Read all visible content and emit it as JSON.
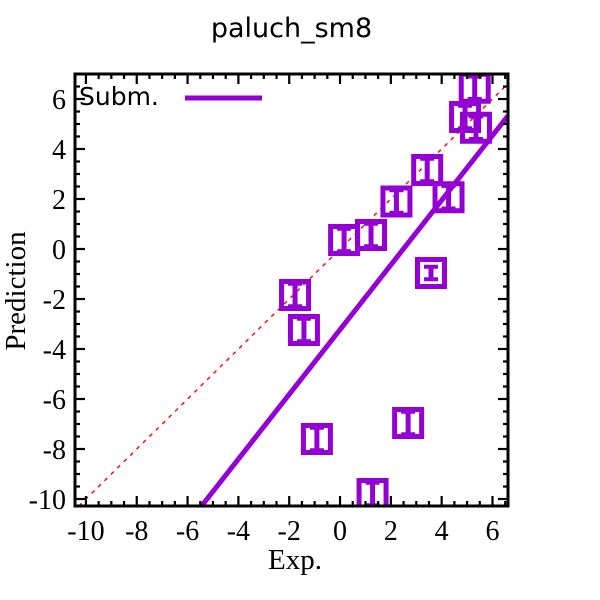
{
  "title": "paluch_sm8",
  "chart_data": {
    "type": "scatter",
    "title": "paluch_sm8",
    "xlabel": "Exp.",
    "ylabel": "Prediction",
    "xlim": [
      -10.43,
      6.61
    ],
    "ylim": [
      -10.28,
      7.0
    ],
    "grid": false,
    "x_major_ticks": [
      -10,
      -8,
      -6,
      -4,
      -2,
      0,
      2,
      4,
      6
    ],
    "y_major_ticks": [
      -10,
      -8,
      -6,
      -4,
      -2,
      0,
      2,
      4,
      6
    ],
    "minor_tick_step": 0.5,
    "legend": {
      "position": "top-left-inside",
      "entries": [
        {
          "label": "Subm.",
          "color": "#9400d3",
          "style": "solid-line"
        }
      ]
    },
    "series": [
      {
        "name": "Subm.",
        "marker": "open-square-with-y-errorbar",
        "color": "#9400d3",
        "points": [
          {
            "x": 5.3,
            "y": 6.45,
            "yerr": 0.45
          },
          {
            "x": 4.92,
            "y": 5.28,
            "yerr": 0.45
          },
          {
            "x": 5.35,
            "y": 4.85,
            "yerr": 0.45
          },
          {
            "x": 3.43,
            "y": 3.16,
            "yerr": 0.45
          },
          {
            "x": 4.27,
            "y": 2.07,
            "yerr": 0.45
          },
          {
            "x": 2.22,
            "y": 1.9,
            "yerr": 0.45
          },
          {
            "x": 1.22,
            "y": 0.56,
            "yerr": 0.45
          },
          {
            "x": 0.16,
            "y": 0.36,
            "yerr": 0.45
          },
          {
            "x": -1.77,
            "y": -1.84,
            "yerr": 0.45
          },
          {
            "x": -1.42,
            "y": -3.24,
            "yerr": 0.45
          },
          {
            "x": 3.58,
            "y": -0.96,
            "yerr": 0.25
          },
          {
            "x": -0.91,
            "y": -7.6,
            "yerr": 0.45
          },
          {
            "x": 2.68,
            "y": -6.96,
            "yerr": 0.45
          },
          {
            "x": 1.28,
            "y": -9.8,
            "yerr": 0.45
          }
        ]
      }
    ],
    "fit_line": {
      "color": "#9400d3",
      "x1": -5.45,
      "y1": -10.28,
      "x2": 6.61,
      "y2": 5.33
    },
    "identity_line": {
      "color": "#ff0000",
      "style": "dashed",
      "equation": "y = x"
    }
  },
  "colors": {
    "marker": "#9400d3",
    "fit_line": "#9400d3",
    "identity_line": "#ff0000",
    "axis": "#000000",
    "background": "#ffffff"
  }
}
